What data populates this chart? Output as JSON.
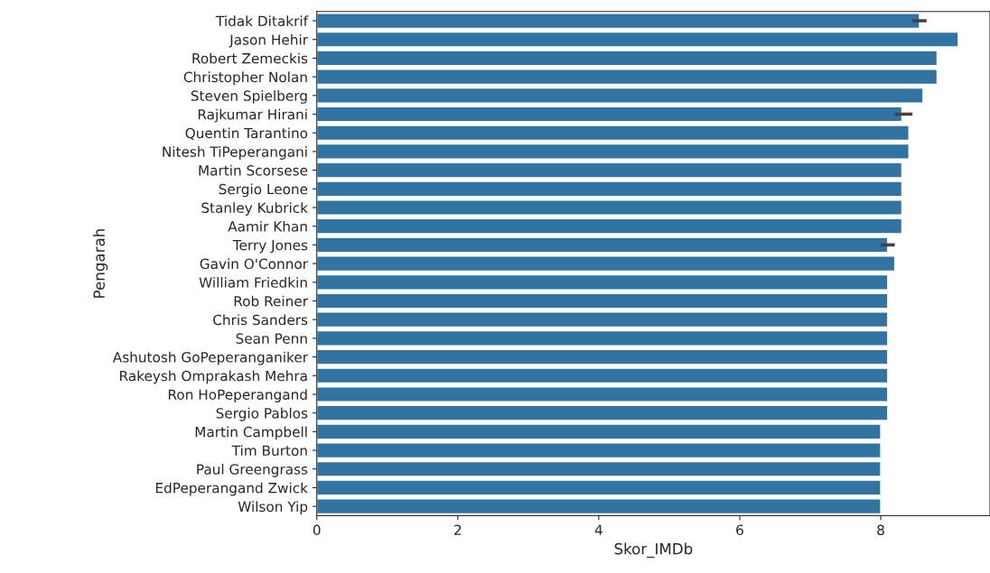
{
  "chart_data": {
    "type": "bar",
    "orientation": "horizontal",
    "xlabel": "Skor_IMDb",
    "ylabel": "Pengarah",
    "categories": [
      "Tidak Ditakrif",
      "Jason Hehir",
      "Robert Zemeckis",
      "Christopher Nolan",
      "Steven Spielberg",
      "Rajkumar Hirani",
      "Quentin Tarantino",
      "Nitesh TiPeperangani",
      "Martin Scorsese",
      "Sergio Leone",
      "Stanley Kubrick",
      "Aamir Khan",
      "Terry Jones",
      "Gavin O'Connor",
      "William Friedkin",
      "Rob Reiner",
      "Chris Sanders",
      "Sean Penn",
      "Ashutosh GoPeperanganiker",
      "Rakeysh Omprakash Mehra",
      "Ron HoPeperangand",
      "Sergio Pablos",
      "Martin Campbell",
      "Tim Burton",
      "Paul Greengrass",
      "EdPeperangand Zwick",
      "Wilson Yip"
    ],
    "values": [
      8.55,
      9.1,
      8.8,
      8.8,
      8.6,
      8.3,
      8.4,
      8.4,
      8.3,
      8.3,
      8.3,
      8.3,
      8.1,
      8.2,
      8.1,
      8.1,
      8.1,
      8.1,
      8.1,
      8.1,
      8.1,
      8.1,
      8.0,
      8.0,
      8.0,
      8.0,
      8.0
    ],
    "errors": [
      [
        8.45,
        8.65
      ],
      null,
      null,
      null,
      null,
      [
        8.2,
        8.45
      ],
      null,
      null,
      null,
      null,
      null,
      null,
      [
        8.0,
        8.2
      ],
      null,
      null,
      null,
      null,
      null,
      null,
      null,
      null,
      null,
      null,
      null,
      null,
      null,
      null
    ],
    "color": "#3274a1",
    "xlim": [
      0,
      9.55
    ],
    "xticks": [
      0,
      2,
      4,
      6,
      8
    ],
    "grid": false
  }
}
